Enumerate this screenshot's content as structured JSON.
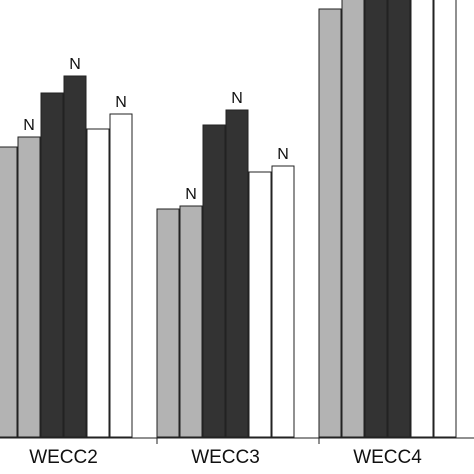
{
  "chart_data": {
    "type": "bar",
    "categories": [
      "WECC2",
      "WECC3",
      "WECC4"
    ],
    "series": [
      {
        "fill": "#b3b3b3",
        "values": [
          290,
          228,
          428
        ]
      },
      {
        "fill": "#b3b3b3",
        "values": [
          300,
          231,
          440
        ],
        "marker": "N"
      },
      {
        "fill": "#333333",
        "values": [
          344,
          312,
          484
        ]
      },
      {
        "fill": "#333333",
        "values": [
          361,
          327,
          504
        ],
        "marker": "N"
      },
      {
        "fill": "#ffffff",
        "values": [
          308,
          265,
          444
        ]
      },
      {
        "fill": "#ffffff",
        "values": [
          323,
          271,
          461
        ],
        "marker": "N"
      }
    ],
    "bar_label": "N",
    "grid": false,
    "legend": "none"
  }
}
